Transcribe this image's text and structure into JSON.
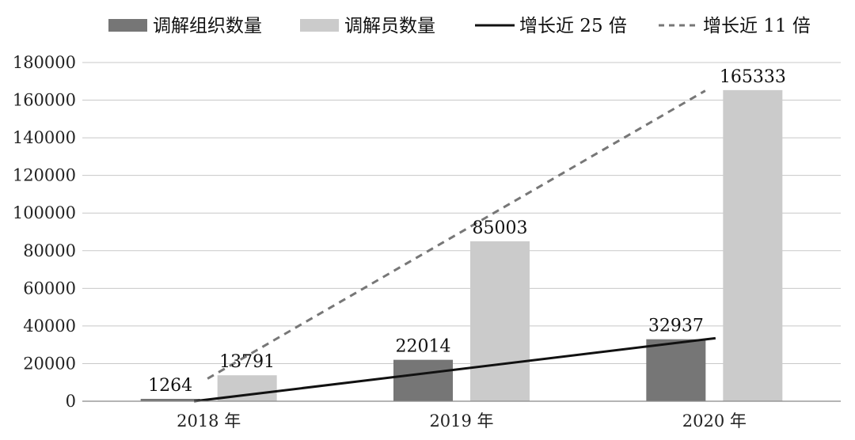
{
  "chart_data": {
    "type": "bar",
    "categories": [
      "2018 年",
      "2019 年",
      "2020 年"
    ],
    "series": [
      {
        "name": "调解组织数量",
        "values": [
          1264,
          22014,
          32937
        ],
        "color": "#767676"
      },
      {
        "name": "调解员数量",
        "values": [
          13791,
          85003,
          165333
        ],
        "color": "#cbcbcb"
      }
    ],
    "trend_lines": [
      {
        "name": "增长近 25 倍",
        "style": "solid",
        "color": "#111111",
        "from": 1,
        "to": 33500
      },
      {
        "name": "增长近 11 倍",
        "style": "dashed",
        "color": "#777777",
        "from": 12000,
        "to": 165000
      }
    ],
    "y_ticks": [
      "0",
      "20000",
      "40000",
      "60000",
      "80000",
      "100000",
      "120000",
      "140000",
      "160000",
      "180000"
    ],
    "ylim": [
      0,
      180000
    ],
    "grid": true,
    "legend_position": "top"
  }
}
